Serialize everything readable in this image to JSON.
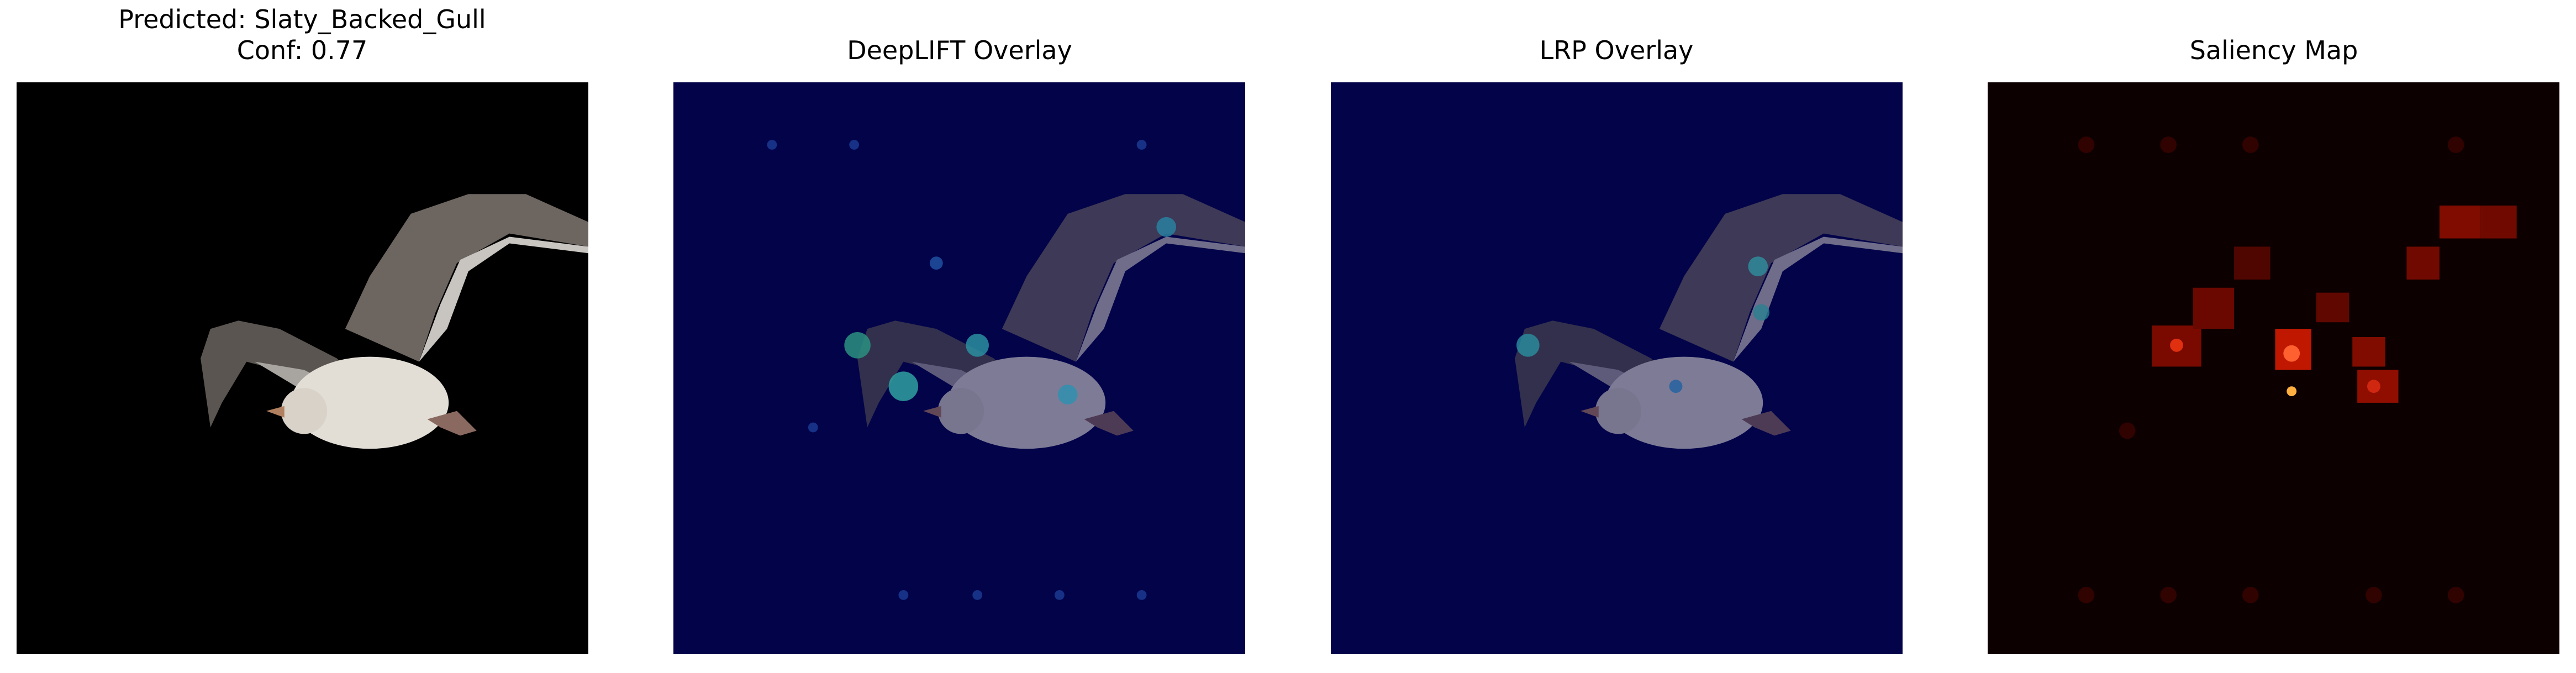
{
  "panels": [
    {
      "title": [
        "Predicted: Slaty_Backed_Gull",
        "Conf: 0.77"
      ]
    },
    {
      "title": [
        "DeepLIFT Overlay"
      ]
    },
    {
      "title": [
        "LRP Overlay"
      ]
    },
    {
      "title": [
        "Saliency Map"
      ]
    }
  ]
}
